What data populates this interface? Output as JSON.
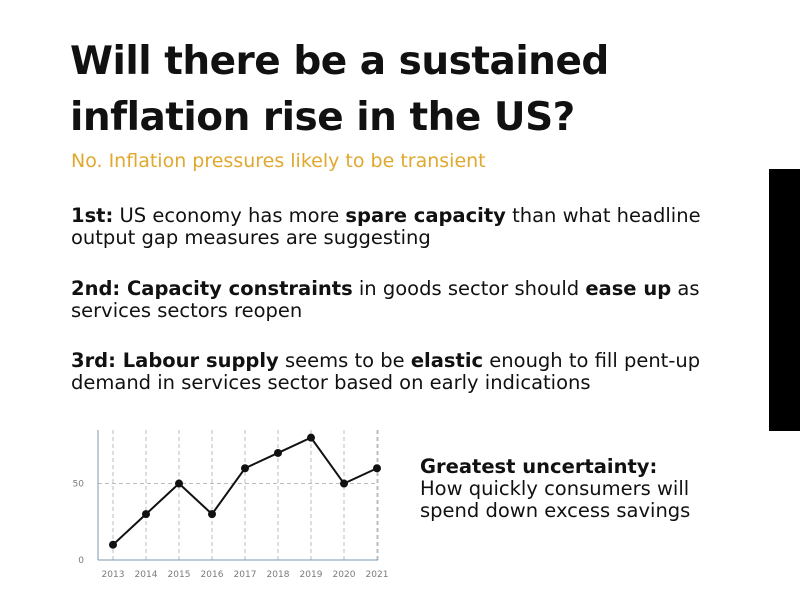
{
  "slide": {
    "title": "Will there be a sustained inflation rise in the US?",
    "subtitle": "No. Inflation pressures likely to be transient",
    "subtitle_color": "#e0a82e",
    "points": [
      {
        "parts": [
          {
            "text": "1st:",
            "bold": true
          },
          {
            "text": " US economy has more ",
            "bold": false
          },
          {
            "text": "spare capacity",
            "bold": true
          },
          {
            "text": " than what headline output gap measures are suggesting",
            "bold": false
          }
        ]
      },
      {
        "parts": [
          {
            "text": "2nd: Capacity constraints",
            "bold": true
          },
          {
            "text": " in goods sector should ",
            "bold": false
          },
          {
            "text": "ease up",
            "bold": true
          },
          {
            "text": " as services sectors reopen",
            "bold": false
          }
        ]
      },
      {
        "parts": [
          {
            "text": "3rd: Labour supply",
            "bold": true
          },
          {
            "text": " seems to be ",
            "bold": false
          },
          {
            "text": "elastic",
            "bold": true
          },
          {
            "text": " enough to fill pent-up demand in services sector based on early indications",
            "bold": false
          }
        ]
      }
    ],
    "uncertainty": {
      "heading": "Greatest uncertainty:",
      "text": "How quickly consumers will spend down excess savings"
    }
  },
  "chart_data": {
    "type": "line",
    "x": [
      "2013",
      "2014",
      "2015",
      "2016",
      "2017",
      "2018",
      "2019",
      "2020",
      "2021"
    ],
    "values": [
      10,
      30,
      50,
      30,
      60,
      70,
      80,
      50,
      60
    ],
    "y_ticks": [
      0,
      50
    ],
    "ylim": [
      0,
      85
    ],
    "grid": true,
    "line_color": "#111111"
  }
}
